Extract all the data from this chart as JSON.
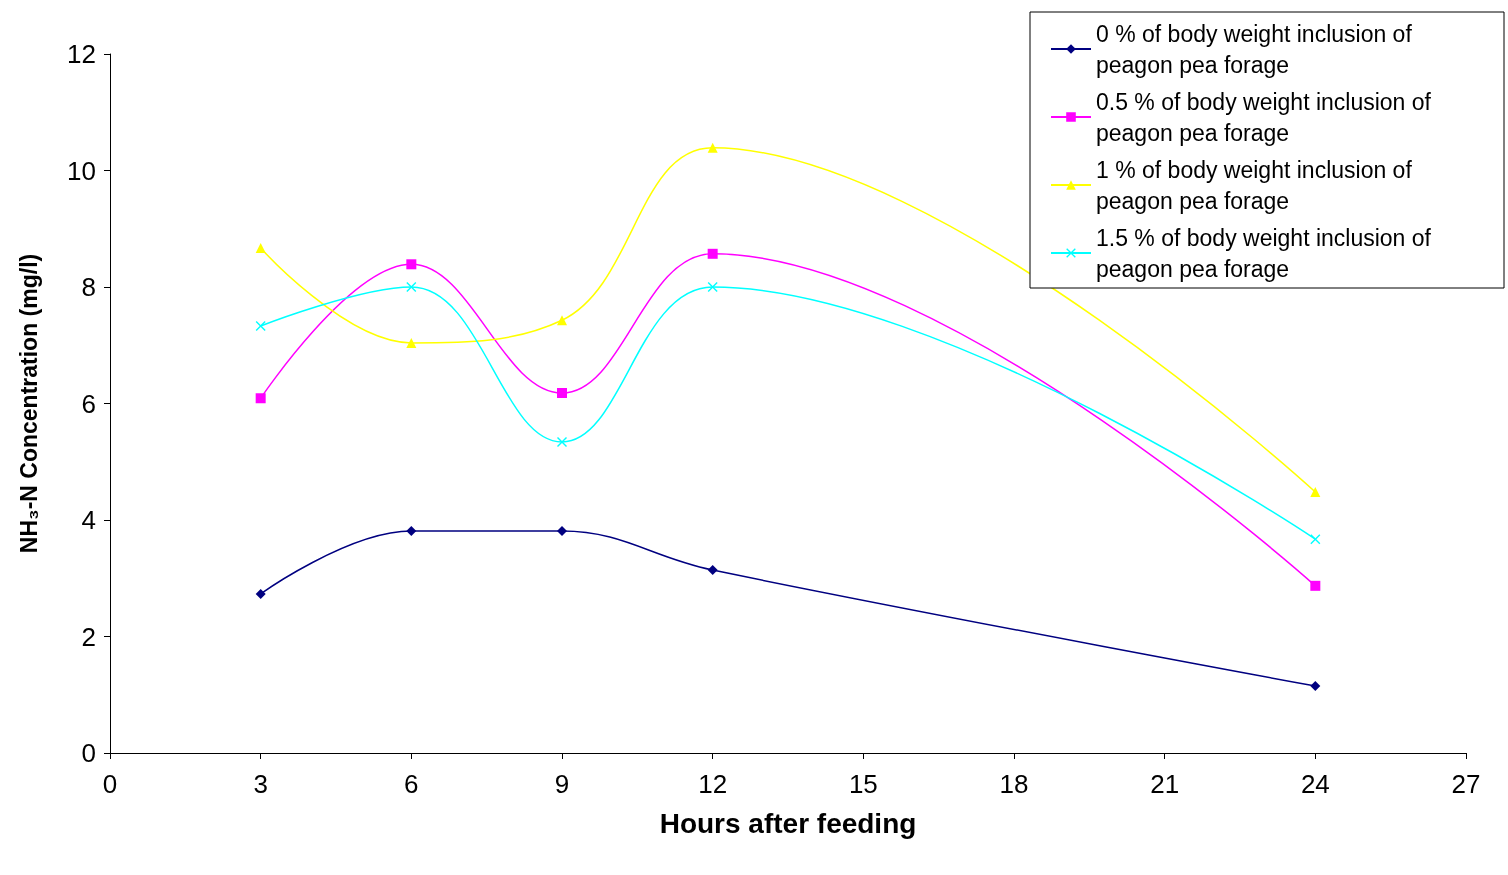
{
  "chart_data": {
    "type": "line",
    "xlabel": "Hours after feeding",
    "ylabel": "NH₃-N Concentration (mg/l)",
    "x": [
      3,
      6,
      9,
      12,
      24
    ],
    "series": [
      {
        "name": "0 % of body weight inclusion of peagon pea forage",
        "color": "#000080",
        "marker": "diamond",
        "values": [
          2.73,
          3.81,
          3.81,
          3.14,
          1.15
        ]
      },
      {
        "name": "0.5 % of body weight inclusion of peagon pea forage",
        "color": "#ff00ff",
        "marker": "square",
        "values": [
          6.09,
          8.39,
          6.18,
          8.57,
          2.87
        ]
      },
      {
        "name": "1 % of body weight inclusion of peagon pea forage",
        "color": "#ffff00",
        "marker": "triangle",
        "values": [
          8.67,
          7.04,
          7.43,
          10.39,
          4.48
        ]
      },
      {
        "name": "1.5 % of body weight inclusion of peagon pea forage",
        "color": "#00ffff",
        "marker": "cross",
        "values": [
          7.33,
          8.0,
          5.34,
          8.0,
          3.67
        ]
      }
    ],
    "xlim": [
      0,
      27
    ],
    "xticks": [
      0,
      3,
      6,
      9,
      12,
      15,
      18,
      21,
      24,
      27
    ],
    "ylim": [
      0,
      12
    ],
    "yticks": [
      0,
      2,
      4,
      6,
      8,
      10,
      12
    ],
    "grid": false,
    "legend": "top right",
    "line_style": "solid"
  }
}
